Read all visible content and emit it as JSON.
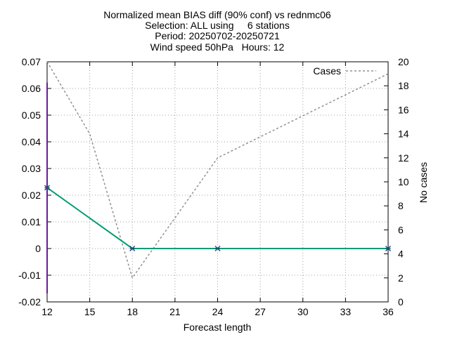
{
  "chart_data": {
    "type": "line",
    "title_lines": [
      "Normalized mean BIAS diff (90% conf) vs rednmc06",
      "Selection: ALL using     6 stations",
      "Period: 20250702-20250721",
      "Wind speed 50hPa   Hours: 12"
    ],
    "xlabel": "Forecast length",
    "y2label": "No cases",
    "xlim": [
      12,
      36
    ],
    "ylim": [
      -0.02,
      0.07
    ],
    "y2lim": [
      0,
      20
    ],
    "xticks": [
      12,
      15,
      18,
      21,
      24,
      27,
      30,
      33,
      36
    ],
    "yticks": [
      -0.02,
      -0.01,
      0,
      0.01,
      0.02,
      0.03,
      0.04,
      0.05,
      0.06,
      0.07
    ],
    "yticklabels": [
      "-0.02",
      "-0.01",
      "0",
      "0.01",
      "0.02",
      "0.03",
      "0.04",
      "0.05",
      "0.06",
      "0.07"
    ],
    "y2ticks": [
      0,
      2,
      4,
      6,
      8,
      10,
      12,
      14,
      16,
      18,
      20
    ],
    "grid": true,
    "legend_position": "top-right",
    "series": [
      {
        "axis": "y",
        "color": "#009e73",
        "style": "solid",
        "marker": "x",
        "x": [
          12,
          18,
          24,
          36
        ],
        "y": [
          0.0228,
          0.0,
          0.0,
          0.0
        ],
        "error_bars": [
          {
            "x": 12,
            "low": -0.0168,
            "high": 0.0622
          }
        ],
        "error_color": "#6a1b9a"
      },
      {
        "name": "Cases",
        "axis": "y2",
        "color": "#909090",
        "style": "dashed",
        "x": [
          12,
          15,
          18,
          24,
          36
        ],
        "y": [
          20,
          14,
          2,
          12,
          19
        ]
      }
    ]
  }
}
